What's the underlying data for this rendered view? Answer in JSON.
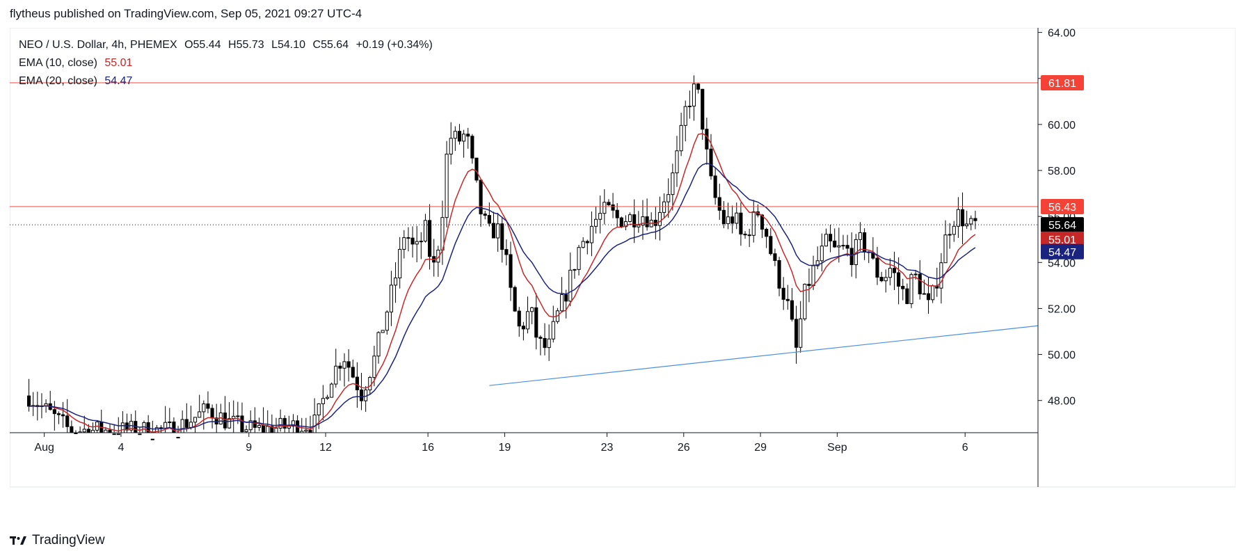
{
  "header": {
    "published": "flytheus published on TradingView.com, Sep 05, 2021 09:27 UTC-4"
  },
  "legend": {
    "symbol": "NEO / U.S. Dollar, 4h, PHEMEX",
    "open_label": "O",
    "open": "55.44",
    "high_label": "H",
    "high": "55.73",
    "low_label": "L",
    "low": "54.10",
    "close_label": "C",
    "close": "55.64",
    "change": "+0.19 (+0.34%)",
    "ema10_label": "EMA (10, close)",
    "ema10_value": "55.01",
    "ema20_label": "EMA (20, close)",
    "ema20_value": "54.47"
  },
  "footer": {
    "brand": "TradingView"
  },
  "colors": {
    "ema10": "#c62828",
    "ema20": "#1a237e",
    "hline": "#f44336",
    "trend": "#4a90e2",
    "candle": "#000000"
  },
  "chart_data": {
    "type": "candlestick",
    "y_axis_ticks": [
      "64.00",
      "62.00",
      "60.00",
      "58.00",
      "56.00",
      "54.00",
      "52.00",
      "50.00",
      "48.00"
    ],
    "ylim": [
      46.6,
      64.2
    ],
    "x_axis_ticks": [
      {
        "label": "Aug",
        "x": 0.0
      },
      {
        "label": "4",
        "x": 3.0
      },
      {
        "label": "9",
        "x": 8.0
      },
      {
        "label": "12",
        "x": 11.0
      },
      {
        "label": "16",
        "x": 15.0
      },
      {
        "label": "19",
        "x": 18.0
      },
      {
        "label": "23",
        "x": 22.0
      },
      {
        "label": "26",
        "x": 25.0
      },
      {
        "label": "29",
        "x": 28.0
      },
      {
        "label": "Sep",
        "x": 31.0
      },
      {
        "label": "6",
        "x": 36.0
      }
    ],
    "xlim": [
      -1.35,
      38.85
    ],
    "horizontal_lines": [
      {
        "value": 61.81,
        "label": "61.81"
      },
      {
        "value": 56.43,
        "label": "56.43"
      }
    ],
    "last_price": {
      "value": 55.64,
      "label": "55.64"
    },
    "ema_tags": [
      {
        "value": 55.01,
        "label": "55.01",
        "series": "ema10"
      },
      {
        "value": 54.47,
        "label": "54.47",
        "series": "ema20"
      }
    ],
    "trendline": [
      {
        "x": 17.4,
        "y": 48.65
      },
      {
        "x": 38.85,
        "y": 51.25
      }
    ],
    "price_path": [
      [
        -0.6,
        48.2
      ],
      [
        1.0,
        46.7
      ],
      [
        5.0,
        46.7
      ],
      [
        6.4,
        47.6
      ],
      [
        7.3,
        47.0
      ],
      [
        8.3,
        46.7
      ],
      [
        10.6,
        47.0
      ],
      [
        11.2,
        49.0
      ],
      [
        11.7,
        50.0
      ],
      [
        12.4,
        48.3
      ],
      [
        12.9,
        49.8
      ],
      [
        13.3,
        51.5
      ],
      [
        13.7,
        53.2
      ],
      [
        14.1,
        55.4
      ],
      [
        14.5,
        54.4
      ],
      [
        14.9,
        55.4
      ],
      [
        15.2,
        53.6
      ],
      [
        15.5,
        55.4
      ],
      [
        15.8,
        59.5
      ],
      [
        16.2,
        59.3
      ],
      [
        16.5,
        59.6
      ],
      [
        16.8,
        57.8
      ],
      [
        17.1,
        56.0
      ],
      [
        17.4,
        55.3
      ],
      [
        17.7,
        55.5
      ],
      [
        18.0,
        54.6
      ],
      [
        18.1,
        53.6
      ],
      [
        18.3,
        52.2
      ],
      [
        18.6,
        51.0
      ],
      [
        19.0,
        52.0
      ],
      [
        19.3,
        50.5
      ],
      [
        19.7,
        50.2
      ],
      [
        20.0,
        51.5
      ],
      [
        20.4,
        52.7
      ],
      [
        20.9,
        54.6
      ],
      [
        21.5,
        55.8
      ],
      [
        22.0,
        56.3
      ],
      [
        22.4,
        55.9
      ],
      [
        22.7,
        55.9
      ],
      [
        23.1,
        56.0
      ],
      [
        23.5,
        56.1
      ],
      [
        23.8,
        55.6
      ],
      [
        24.1,
        56.5
      ],
      [
        24.5,
        57.4
      ],
      [
        24.8,
        58.9
      ],
      [
        25.1,
        60.8
      ],
      [
        25.5,
        61.7
      ],
      [
        25.8,
        59.6
      ],
      [
        26.0,
        57.7
      ],
      [
        26.3,
        56.5
      ],
      [
        26.6,
        55.7
      ],
      [
        27.0,
        56.0
      ],
      [
        27.3,
        54.9
      ],
      [
        27.6,
        55.6
      ],
      [
        27.9,
        56.2
      ],
      [
        28.2,
        55.4
      ],
      [
        28.5,
        54.0
      ],
      [
        28.8,
        53.0
      ],
      [
        29.1,
        52.0
      ],
      [
        29.4,
        50.2
      ],
      [
        29.7,
        52.5
      ],
      [
        30.0,
        53.5
      ],
      [
        30.3,
        54.2
      ],
      [
        30.6,
        54.9
      ],
      [
        30.9,
        54.5
      ],
      [
        31.3,
        54.6
      ],
      [
        31.6,
        54.3
      ],
      [
        31.9,
        54.9
      ],
      [
        32.2,
        54.6
      ],
      [
        32.5,
        53.6
      ],
      [
        32.8,
        53.3
      ],
      [
        33.1,
        53.8
      ],
      [
        33.4,
        53.0
      ],
      [
        33.7,
        52.5
      ],
      [
        34.0,
        53.5
      ],
      [
        34.3,
        52.8
      ],
      [
        34.6,
        52.0
      ],
      [
        34.9,
        53.3
      ],
      [
        35.2,
        54.9
      ],
      [
        35.5,
        55.9
      ],
      [
        35.8,
        56.1
      ],
      [
        36.1,
        55.5
      ],
      [
        36.4,
        55.64
      ]
    ]
  }
}
